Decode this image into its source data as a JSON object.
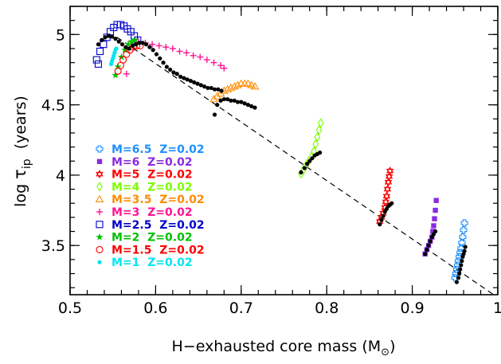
{
  "chart_data": {
    "type": "scatter",
    "xlabel": "H−exhausted core mass (M",
    "xlabel_sub": "⊙",
    "xlabel_tail": ")",
    "ylabel_prefix": "log ",
    "ylabel_symbol": "τ",
    "ylabel_sub": "ip",
    "ylabel_suffix": "  (years)",
    "xlim": [
      0.5,
      1.0
    ],
    "ylim": [
      3.15,
      5.2
    ],
    "xticks": [
      0.5,
      0.6,
      0.7,
      0.8,
      0.9,
      1.0
    ],
    "xtick_labels": [
      "0.5",
      "0.6",
      "0.7",
      "0.8",
      "0.9",
      "1"
    ],
    "yticks": [
      3.5,
      4.0,
      4.5,
      5.0
    ],
    "ytick_labels": [
      "3.5",
      "4",
      "4.5",
      "5"
    ],
    "grid": false,
    "legend_position": "lower-left",
    "reference_line": {
      "style": "dashed",
      "color": "#000000",
      "x": [
        0.555,
        1.0
      ],
      "y": [
        4.98,
        3.13
      ]
    },
    "fit_points": {
      "name": "",
      "color": "#000000",
      "x": [
        0.533,
        0.537,
        0.541,
        0.545,
        0.549,
        0.553,
        0.557,
        0.561,
        0.565,
        0.569,
        0.573,
        0.577,
        0.581,
        0.585,
        0.589,
        0.593,
        0.597,
        0.601,
        0.605,
        0.609,
        0.613,
        0.617,
        0.621,
        0.625,
        0.629,
        0.633,
        0.637,
        0.641,
        0.645,
        0.649,
        0.653,
        0.657,
        0.661,
        0.665,
        0.669,
        0.673,
        0.677,
        0.669,
        0.672,
        0.676,
        0.68,
        0.684,
        0.688,
        0.692,
        0.696,
        0.7,
        0.704,
        0.708,
        0.712,
        0.716,
        0.77,
        0.774,
        0.777,
        0.78,
        0.783,
        0.786,
        0.789,
        0.792,
        0.862,
        0.864,
        0.866,
        0.868,
        0.87,
        0.872,
        0.874,
        0.876,
        0.915,
        0.917,
        0.919,
        0.921,
        0.923,
        0.925,
        0.927,
        0.952,
        0.954,
        0.955,
        0.956,
        0.957,
        0.958,
        0.959,
        0.96,
        0.961,
        0.962
      ],
      "y": [
        4.93,
        4.96,
        4.98,
        4.99,
        4.985,
        4.97,
        4.95,
        4.93,
        4.91,
        4.9,
        4.92,
        4.93,
        4.94,
        4.94,
        4.93,
        4.91,
        4.89,
        4.86,
        4.83,
        4.8,
        4.77,
        4.75,
        4.73,
        4.72,
        4.7,
        4.69,
        4.68,
        4.67,
        4.66,
        4.65,
        4.64,
        4.63,
        4.62,
        4.62,
        4.61,
        4.61,
        4.6,
        4.43,
        4.5,
        4.53,
        4.54,
        4.54,
        4.53,
        4.53,
        4.52,
        4.52,
        4.51,
        4.5,
        4.49,
        4.48,
        4.02,
        4.05,
        4.08,
        4.1,
        4.12,
        4.14,
        4.15,
        4.16,
        3.65,
        3.68,
        3.71,
        3.74,
        3.76,
        3.78,
        3.79,
        3.8,
        3.44,
        3.47,
        3.5,
        3.53,
        3.56,
        3.58,
        3.6,
        3.24,
        3.27,
        3.3,
        3.33,
        3.36,
        3.39,
        3.42,
        3.44,
        3.46,
        3.49
      ]
    },
    "series": [
      {
        "name": "M=6.5  Z=0.02",
        "color": "#1e90ff",
        "marker": "cross-open",
        "x": [
          0.95,
          0.951,
          0.952,
          0.953,
          0.954,
          0.955,
          0.956,
          0.957,
          0.958,
          0.959,
          0.96,
          0.961
        ],
        "y": [
          3.27,
          3.3,
          3.33,
          3.36,
          3.39,
          3.42,
          3.45,
          3.48,
          3.52,
          3.56,
          3.61,
          3.66
        ]
      },
      {
        "name": "M=6  Z=0.02",
        "color": "#8a2be2",
        "marker": "filled-square",
        "x": [
          0.915,
          0.917,
          0.919,
          0.921,
          0.923,
          0.924,
          0.925,
          0.926,
          0.927,
          0.928
        ],
        "y": [
          3.44,
          3.47,
          3.5,
          3.53,
          3.56,
          3.6,
          3.64,
          3.69,
          3.75,
          3.82
        ]
      },
      {
        "name": "M=5  Z=0.02",
        "color": "#ff0000",
        "marker": "star-of-david",
        "x": [
          0.862,
          0.864,
          0.866,
          0.868,
          0.869,
          0.87,
          0.871,
          0.872,
          0.873,
          0.874
        ],
        "y": [
          3.67,
          3.7,
          3.73,
          3.77,
          3.81,
          3.85,
          3.9,
          3.95,
          3.99,
          4.03
        ]
      },
      {
        "name": "M=4  Z=0.02",
        "color": "#7cfc00",
        "marker": "diamond-open",
        "x": [
          0.77,
          0.773,
          0.776,
          0.779,
          0.782,
          0.785,
          0.787,
          0.789,
          0.791,
          0.793
        ],
        "y": [
          4.01,
          4.04,
          4.07,
          4.1,
          4.13,
          4.17,
          4.22,
          4.27,
          4.32,
          4.37
        ]
      },
      {
        "name": "M=3.5  Z=0.02",
        "color": "#ff8c00",
        "marker": "triangle-open",
        "x": [
          0.668,
          0.672,
          0.676,
          0.68,
          0.684,
          0.688,
          0.692,
          0.696,
          0.7,
          0.704,
          0.708,
          0.712,
          0.716
        ],
        "y": [
          4.54,
          4.56,
          4.58,
          4.6,
          4.61,
          4.62,
          4.63,
          4.64,
          4.65,
          4.65,
          4.65,
          4.64,
          4.63
        ]
      },
      {
        "name": "M=3  Z=0.02",
        "color": "#ff1493",
        "marker": "plus",
        "x": [
          0.572,
          0.58,
          0.588,
          0.596,
          0.604,
          0.612,
          0.62,
          0.628,
          0.636,
          0.644,
          0.652,
          0.66,
          0.668,
          0.676,
          0.68,
          0.566
        ],
        "y": [
          4.95,
          4.95,
          4.94,
          4.93,
          4.92,
          4.91,
          4.9,
          4.88,
          4.87,
          4.85,
          4.84,
          4.82,
          4.8,
          4.78,
          4.76,
          4.72
        ]
      },
      {
        "name": "M=2.5  Z=0.02",
        "color": "#0000cd",
        "marker": "square-open",
        "x": [
          0.531,
          0.535,
          0.539,
          0.543,
          0.547,
          0.551,
          0.555,
          0.559,
          0.563,
          0.567,
          0.571,
          0.575,
          0.579,
          0.533
        ],
        "y": [
          4.82,
          4.88,
          4.93,
          4.98,
          5.02,
          5.05,
          5.07,
          5.07,
          5.06,
          5.04,
          5.02,
          4.99,
          4.96,
          4.79
        ]
      },
      {
        "name": "M=2  Z=0.02",
        "color": "#00c000",
        "marker": "star-filled",
        "x": [
          0.553,
          0.556,
          0.56,
          0.564,
          0.568,
          0.572,
          0.576
        ],
        "y": [
          4.71,
          4.77,
          4.84,
          4.89,
          4.93,
          4.95,
          4.96
        ]
      },
      {
        "name": "M=1.5  Z=0.02",
        "color": "#ff0000",
        "marker": "circle-open",
        "x": [
          0.556,
          0.559,
          0.562,
          0.566,
          0.57,
          0.574,
          0.578,
          0.582
        ],
        "y": [
          4.74,
          4.78,
          4.82,
          4.86,
          4.89,
          4.91,
          4.92,
          4.92
        ]
      },
      {
        "name": "M=1  Z=0.02",
        "color": "#00e5ee",
        "marker": "filled-circle",
        "x": [
          0.548,
          0.549,
          0.55,
          0.551,
          0.552,
          0.553,
          0.554
        ],
        "y": [
          4.79,
          4.81,
          4.83,
          4.85,
          4.87,
          4.89,
          4.9
        ]
      }
    ]
  }
}
